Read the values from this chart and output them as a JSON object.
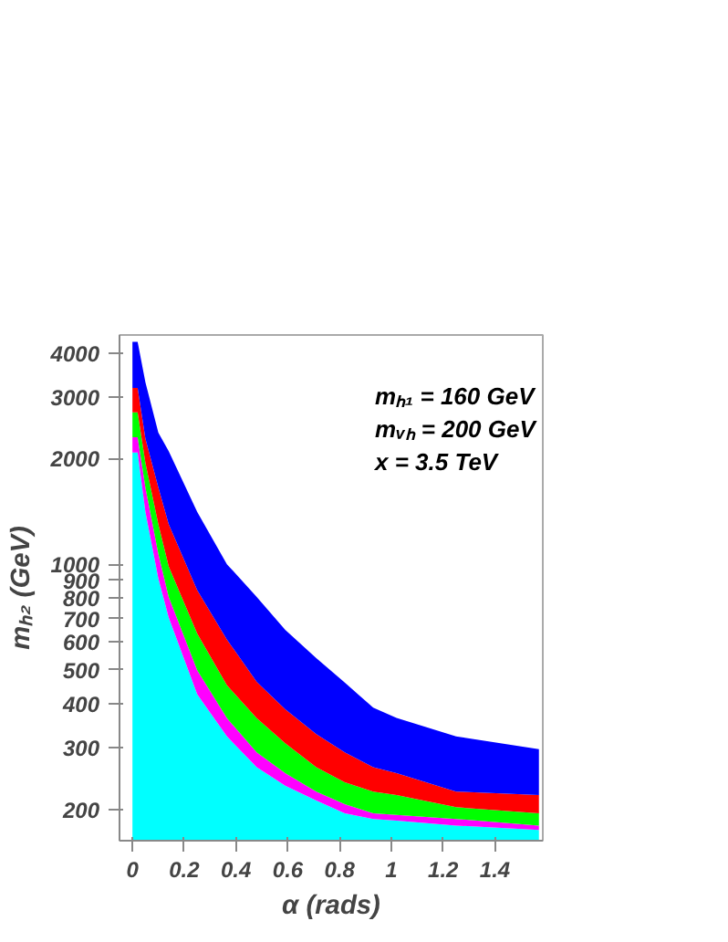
{
  "chart_data": {
    "type": "area",
    "xlabel": "α (rads)",
    "ylabel": "mₕ₂ (GeV)",
    "annotations": [
      "mₕ₁ = 160 GeV",
      "mᵥₕ = 200 GeV",
      "x = 3.5 TeV"
    ],
    "x": [
      0.0,
      0.02,
      0.05,
      0.1,
      0.14,
      0.25,
      0.365,
      0.48,
      0.59,
      0.71,
      0.82,
      0.93,
      1.02,
      1.25,
      1.57
    ],
    "series": [
      {
        "color": "#00ffff",
        "values": [
          2080,
          2080,
          1410,
          910,
          705,
          426,
          323,
          264,
          234,
          212,
          195,
          188,
          186,
          180,
          175
        ]
      },
      {
        "color": "#ff00ff",
        "values": [
          2300,
          2300,
          1656,
          1071,
          807,
          499,
          364,
          291,
          254,
          225,
          207,
          195,
          193,
          188,
          180
        ]
      },
      {
        "color": "#00ff00",
        "values": [
          2708,
          2708,
          1946,
          1300,
          986,
          635,
          452,
          364,
          309,
          264,
          239,
          225,
          220,
          203,
          195
        ]
      },
      {
        "color": "#ff0000",
        "values": [
          3180,
          3180,
          2280,
          1656,
          1300,
          844,
          610,
          462,
          386,
          328,
          291,
          264,
          254,
          225,
          220
        ]
      },
      {
        "color": "#0000ff",
        "values": [
          4300,
          4300,
          3300,
          2370,
          2100,
          1410,
          1000,
          807,
          650,
          540,
          460,
          390,
          365,
          323,
          297
        ]
      }
    ],
    "log": "y",
    "grid": false,
    "xlim": [
      -0.05,
      1.585
    ],
    "ylim": [
      163,
      4500
    ],
    "xticks": [
      0,
      0.2,
      0.4,
      0.6,
      0.8,
      1,
      1.2,
      1.4
    ],
    "yticks": [
      200,
      300,
      400,
      500,
      600,
      700,
      800,
      900,
      1000,
      2000,
      3000,
      4000
    ]
  }
}
